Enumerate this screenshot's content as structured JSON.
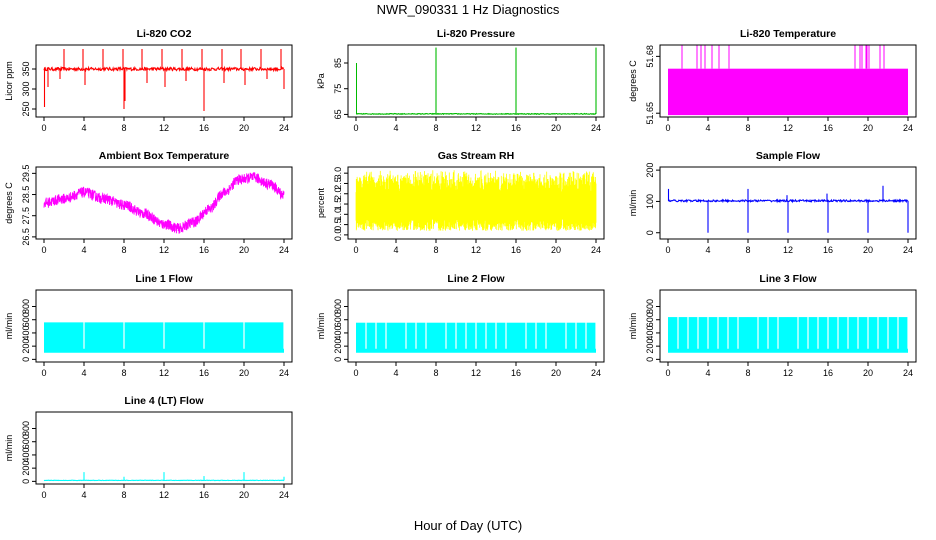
{
  "figure": {
    "title": "NWR_090331  1 Hz Diagnostics",
    "xlabel": "Hour of Day (UTC)"
  },
  "chart_data": [
    {
      "type": "line",
      "title": "Li-820 CO2",
      "ylabel": "Licor ppm",
      "color": "#ff0000",
      "xlim": [
        0,
        24
      ],
      "xticks": [
        0,
        4,
        8,
        12,
        16,
        20,
        24
      ],
      "ylim": [
        230,
        410
      ],
      "yticks": [
        250,
        300,
        350
      ],
      "series": [
        {
          "baseline": 350,
          "noise": 4,
          "spikes_up": [
            2.0,
            3.9,
            5.9,
            7.9,
            9.8,
            11.8,
            13.8,
            15.8,
            17.8,
            19.7,
            21.7,
            23.7
          ],
          "spike_up_to": 400,
          "spikes_down": [
            0.05,
            0.4,
            1.6,
            4.1,
            8.0,
            8.1,
            10.3,
            12.1,
            14.2,
            16.0,
            18.0,
            20.1,
            22.3,
            24.0
          ],
          "spike_down_to": [
            255,
            305,
            325,
            310,
            250,
            270,
            315,
            305,
            320,
            245,
            315,
            310,
            325,
            300
          ]
        }
      ]
    },
    {
      "type": "line",
      "title": "Li-820 Pressure",
      "ylabel": "kPa",
      "color": "#00bb00",
      "xlim": [
        0,
        24
      ],
      "xticks": [
        0,
        4,
        8,
        12,
        16,
        20,
        24
      ],
      "ylim": [
        64,
        92
      ],
      "yticks": [
        65,
        75,
        85
      ],
      "series": [
        {
          "baseline": 65.2,
          "noise": 0.15,
          "start_spike": 85,
          "spikes_up": [
            8.0,
            16.0,
            24.0
          ],
          "spike_up_to": 91
        }
      ]
    },
    {
      "type": "area",
      "title": "Li-820 Temperature",
      "ylabel": "degrees C",
      "color": "#ff00ff",
      "xlim": [
        0,
        24
      ],
      "xticks": [
        0,
        4,
        8,
        12,
        16,
        20,
        24
      ],
      "ylim": [
        51.648,
        51.686
      ],
      "yticks": [
        51.65,
        51.68
      ],
      "ytick_labels": [
        "51.65",
        "51.68"
      ],
      "series": [
        {
          "band": [
            51.649,
            51.6735
          ],
          "spikes_up": [
            1.4,
            2.9,
            3.3,
            3.7,
            4.4,
            5.1,
            6.1,
            18.7,
            19.2,
            19.4,
            19.8,
            19.9,
            20.1,
            21.2,
            21.6
          ],
          "spike_up_to": 51.686
        }
      ]
    },
    {
      "type": "line",
      "title": "Ambient Box Temperature",
      "ylabel": "degrees C",
      "color": "#ff00ff",
      "xlim": [
        0,
        24
      ],
      "xticks": [
        0,
        4,
        8,
        12,
        16,
        20,
        24
      ],
      "ylim": [
        26.4,
        29.8
      ],
      "yticks": [
        26.5,
        27.5,
        28.5,
        29.5
      ],
      "series": [
        {
          "x": [
            0,
            2,
            4,
            6,
            8,
            10,
            12,
            13.5,
            15,
            16.5,
            18,
            19.5,
            21,
            22.5,
            24
          ],
          "y": [
            28.1,
            28.3,
            28.6,
            28.3,
            28.0,
            27.6,
            27.1,
            26.9,
            27.2,
            27.8,
            28.6,
            29.2,
            29.3,
            29.0,
            28.5
          ],
          "noise": 0.25
        }
      ]
    },
    {
      "type": "line",
      "title": "Gas Stream RH",
      "ylabel": "percent",
      "color": "#ffff00",
      "xlim": [
        0,
        24
      ],
      "xticks": [
        0,
        4,
        8,
        12,
        16,
        20,
        24
      ],
      "ylim": [
        -0.2,
        3.3
      ],
      "yticks": [
        0.0,
        0.5,
        1.0,
        1.5,
        2.0,
        2.5,
        3.0
      ],
      "ytick_labels": [
        "0.0",
        "0.5",
        "1.0",
        "1.5",
        "2.0",
        "2.5",
        "3.0"
      ],
      "series": [
        {
          "band": [
            0.2,
            2.8
          ],
          "noise_fill": true
        }
      ]
    },
    {
      "type": "line",
      "title": "Sample Flow",
      "ylabel": "ml/min",
      "color": "#0000ff",
      "xlim": [
        0,
        24
      ],
      "xticks": [
        0,
        4,
        8,
        12,
        16,
        20,
        24
      ],
      "ylim": [
        -20,
        210
      ],
      "yticks": [
        0,
        100,
        200
      ],
      "series": [
        {
          "baseline": 102,
          "noise": 3,
          "spikes_down": [
            4.0,
            8.0,
            12.0,
            16.0,
            20.0,
            24.0
          ],
          "spike_down_to": 0,
          "spikes_up": [
            0.05,
            8.0,
            11.9,
            15.9,
            21.5
          ],
          "spike_up_to": [
            140,
            140,
            120,
            125,
            150
          ]
        }
      ]
    },
    {
      "type": "area",
      "title": "Line 1 Flow",
      "ylabel": "ml/min",
      "color": "#00ffff",
      "xlim": [
        0,
        24
      ],
      "xticks": [
        0,
        4,
        8,
        12,
        16,
        20,
        24
      ],
      "ylim": [
        -40,
        1050
      ],
      "yticks": [
        0,
        200,
        400,
        600,
        800
      ],
      "series": [
        {
          "band": [
            100,
            560
          ],
          "gaps": [
            4.0,
            8.0,
            12.0,
            16.0,
            20.0,
            24.0
          ]
        }
      ]
    },
    {
      "type": "area",
      "title": "Line 2 Flow",
      "ylabel": "ml/min",
      "color": "#00ffff",
      "xlim": [
        0,
        24
      ],
      "xticks": [
        0,
        4,
        8,
        12,
        16,
        20,
        24
      ],
      "ylim": [
        -40,
        1050
      ],
      "yticks": [
        0,
        200,
        400,
        600,
        800
      ],
      "series": [
        {
          "band": [
            100,
            555
          ],
          "gaps": [
            1.0,
            2.0,
            3.0,
            5.0,
            6.0,
            7.0,
            9.0,
            10.0,
            11.0,
            12.0,
            13.0,
            14.0,
            15.0,
            17.0,
            18.0,
            19.0,
            21.0,
            22.0,
            23.0,
            24.0
          ]
        }
      ]
    },
    {
      "type": "area",
      "title": "Line 3 Flow",
      "ylabel": "ml/min",
      "color": "#00ffff",
      "xlim": [
        0,
        24
      ],
      "xticks": [
        0,
        4,
        8,
        12,
        16,
        20,
        24
      ],
      "ylim": [
        -40,
        1050
      ],
      "yticks": [
        0,
        200,
        400,
        600,
        800
      ],
      "series": [
        {
          "band": [
            100,
            640
          ],
          "gaps": [
            1.0,
            2.0,
            3.0,
            4.0,
            5.0,
            6.0,
            7.0,
            9.0,
            10.0,
            11.0,
            13.0,
            14.0,
            15.0,
            16.0,
            17.0,
            18.0,
            19.0,
            20.0,
            21.0,
            22.0,
            23.0,
            24.0
          ]
        }
      ]
    },
    {
      "type": "line",
      "title": "Line 4 (LT) Flow",
      "ylabel": "ml/min",
      "color": "#00ffff",
      "xlim": [
        0,
        24
      ],
      "xticks": [
        0,
        4,
        8,
        12,
        16,
        20,
        24
      ],
      "ylim": [
        -40,
        1050
      ],
      "yticks": [
        0,
        200,
        400,
        600,
        800
      ],
      "series": [
        {
          "baseline": 15,
          "noise": 3,
          "spikes_up": [
            4.0,
            8.0,
            12.0,
            16.0,
            20.0,
            24.0
          ],
          "spike_up_to": [
            140,
            70,
            140,
            80,
            140,
            70
          ]
        }
      ]
    }
  ]
}
